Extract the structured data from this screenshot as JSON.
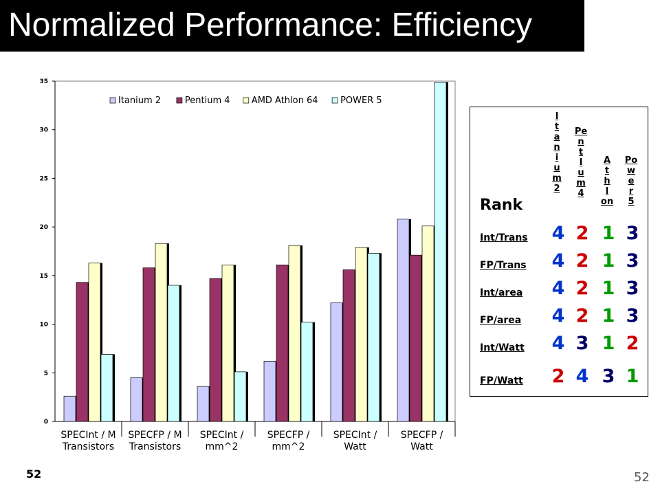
{
  "slide": {
    "title": "Normalized Performance: Efficiency",
    "page_number": "52",
    "page_number_right": "52"
  },
  "chart_data": {
    "type": "bar",
    "categories": [
      "SPECInt / M Transistors",
      "SPECFP / M Transistors",
      "SPECInt / mm^2",
      "SPECFP / mm^2",
      "SPECInt / Watt",
      "SPECFP / Watt"
    ],
    "category_lines": [
      [
        "SPECInt / M",
        "Transistors"
      ],
      [
        "SPECFP / M",
        "Transistors"
      ],
      [
        "SPECInt /",
        "mm^2"
      ],
      [
        "SPECFP /",
        "mm^2"
      ],
      [
        "SPECInt /",
        "Watt"
      ],
      [
        "SPECFP /",
        "Watt"
      ]
    ],
    "series": [
      {
        "name": "Itanium 2",
        "color": "#CCCCFF",
        "values": [
          2.6,
          4.5,
          3.6,
          6.2,
          12.2,
          20.8
        ]
      },
      {
        "name": "Pentium 4",
        "color": "#993366",
        "values": [
          14.3,
          15.8,
          14.7,
          16.1,
          15.6,
          17.1
        ]
      },
      {
        "name": "AMD Athlon 64",
        "color": "#FFFFCC",
        "values": [
          16.3,
          18.3,
          16.1,
          18.1,
          17.9,
          20.1
        ]
      },
      {
        "name": "POWER 5",
        "color": "#CCFFFF",
        "values": [
          6.9,
          14.0,
          5.1,
          10.2,
          17.3,
          34.9
        ]
      }
    ],
    "ylim": [
      0,
      35
    ],
    "yticks": [
      "0",
      "5",
      "10",
      "15",
      "20",
      "25",
      "30",
      "35"
    ],
    "grid": false,
    "legend": "top"
  },
  "rank_table": {
    "corner_label": "Rank",
    "columns": [
      {
        "label": "Itanium2",
        "chars": [
          "I",
          "t",
          "a",
          "n",
          "i",
          "u",
          "m",
          "2"
        ]
      },
      {
        "label": "PentIum4",
        "chars": [
          "Pe",
          "n",
          "t",
          "I",
          "u",
          "m",
          "4"
        ]
      },
      {
        "label": "Athlon",
        "chars": [
          "A",
          "t",
          "h",
          "l",
          "on"
        ]
      },
      {
        "label": "Power5",
        "chars": [
          "Po",
          "w",
          "e",
          "r",
          "5"
        ]
      }
    ],
    "rows": [
      {
        "label": "Int/Trans",
        "values": [
          "4",
          "2",
          "1",
          "3"
        ]
      },
      {
        "label": "FP/Trans",
        "values": [
          "4",
          "2",
          "1",
          "3"
        ]
      },
      {
        "label": "Int/area",
        "values": [
          "4",
          "2",
          "1",
          "3"
        ]
      },
      {
        "label": "FP/area",
        "values": [
          "4",
          "2",
          "1",
          "3"
        ]
      },
      {
        "label": "Int/Watt",
        "values": [
          "4",
          "3",
          "1",
          "2"
        ]
      },
      {
        "label": "FP/Watt",
        "values": [
          "2",
          "4",
          "3",
          "1"
        ]
      }
    ],
    "rank_colors": {
      "1": "#009900",
      "2": "#CC0000",
      "3": "#000066",
      "4": "#0033CC"
    }
  }
}
